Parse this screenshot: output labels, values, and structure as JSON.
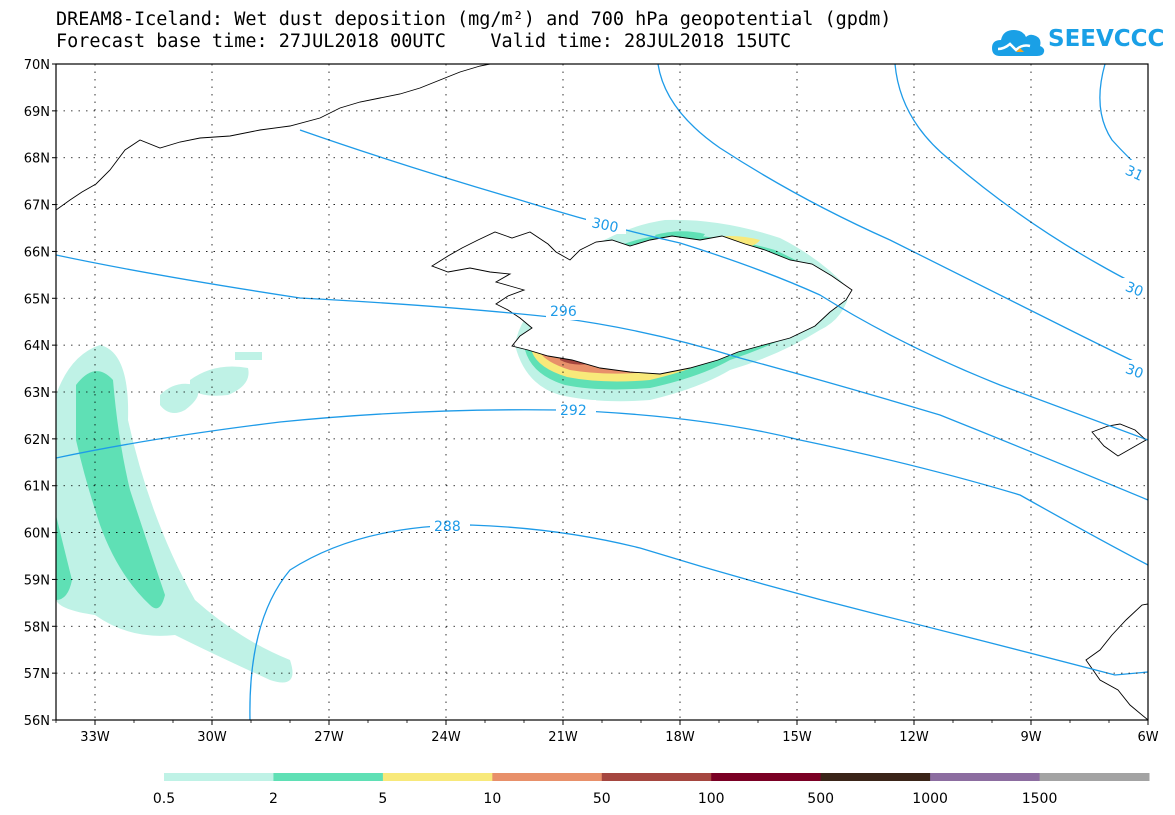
{
  "title_line1": "DREAM8-Iceland: Wet dust deposition (mg/m²) and 700 hPa geopotential (gpdm)",
  "title_line2": "Forecast base time: 27JUL2018 00UTC    Valid time: 28JUL2018 15UTC",
  "logo": {
    "text": "SEEVCCC",
    "icon": "cloud-logo-icon",
    "color": "#1aa0e6"
  },
  "map": {
    "lon_range": [
      -34.0,
      -6.0
    ],
    "lat_range": [
      56.0,
      70.0
    ],
    "lat_labels": [
      "70N",
      "69N",
      "68N",
      "67N",
      "66N",
      "65N",
      "64N",
      "63N",
      "62N",
      "61N",
      "60N",
      "59N",
      "58N",
      "57N",
      "56N"
    ],
    "lon_labels": [
      "33W",
      "30W",
      "27W",
      "24W",
      "21W",
      "18W",
      "15W",
      "12W",
      "9W",
      "6W"
    ],
    "grid": "dotted"
  },
  "contours": {
    "variable": "700 hPa geopotential",
    "color": "#1e9be8",
    "labels": [
      "300",
      "296",
      "292",
      "288",
      "31",
      "30",
      "30"
    ]
  },
  "colorbar": {
    "colors": [
      "#bff2e6",
      "#5fe0b5",
      "#f8e97a",
      "#e8906a",
      "#a5463f",
      "#7a0024",
      "#3a2418",
      "#8c6da0",
      "#a3a3a3"
    ],
    "labels": [
      "0.5",
      "2",
      "5",
      "10",
      "50",
      "100",
      "500",
      "1000",
      "1500"
    ]
  }
}
